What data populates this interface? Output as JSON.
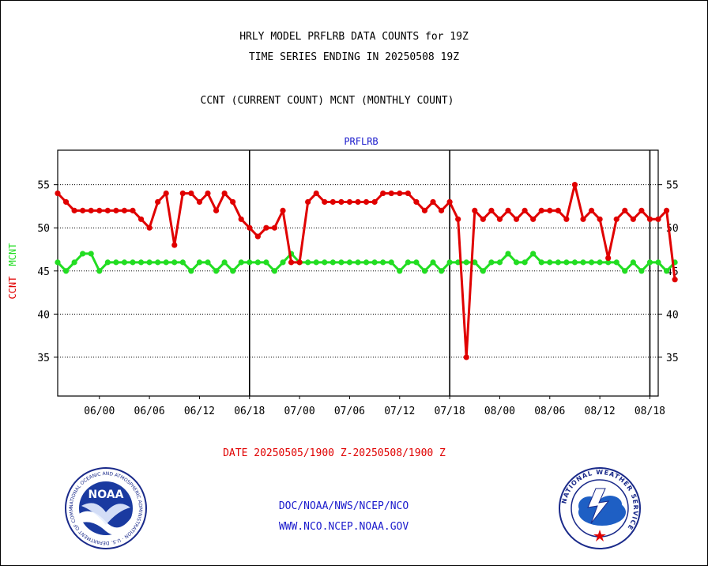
{
  "header": {
    "title_line1": "HRLY MODEL PRFLRB DATA COUNTS for 19Z",
    "title_line2": "TIME SERIES ENDING IN 20250508 19Z",
    "subtitle": "CCNT (CURRENT COUNT) MCNT (MONTHLY COUNT)"
  },
  "footer": {
    "org_path": "DOC/NOAA/NWS/NCEP/NCO",
    "website": "WWW.NCO.NCEP.NOAA.GOV"
  },
  "logos": {
    "noaa": {
      "center_text": "NOAA",
      "ring_text": "NATIONAL OCEANIC AND ATMOSPHERIC ADMINISTRATION · U.S. DEPARTMENT OF COMMERCE"
    },
    "nws": {
      "ring_text": "NATIONAL WEATHER SERVICE"
    }
  },
  "chart_data": {
    "type": "line",
    "title": "PRFLRB",
    "xlabel": "DATE 20250505/1900 Z-20250508/1900 Z",
    "ylabel_ccnt": "CCNT",
    "ylabel_mcnt": "MCNT",
    "ylim": [
      30.5,
      59
    ],
    "y_ticks": [
      35,
      40,
      45,
      50,
      55
    ],
    "x_ticks": [
      "06/00",
      "06/06",
      "06/12",
      "06/18",
      "07/00",
      "07/06",
      "07/12",
      "07/18",
      "08/00",
      "08/06",
      "08/12",
      "08/18"
    ],
    "x_tick_hours": [
      5,
      11,
      17,
      23,
      29,
      35,
      41,
      47,
      53,
      59,
      65,
      71
    ],
    "day_boundary_hours": [
      23,
      47,
      71
    ],
    "x_hours_range": [
      0,
      72
    ],
    "grid": "horizontal dotted",
    "colors": {
      "ccnt": "#e00000",
      "mcnt": "#22dd22",
      "title": "#1a1acc",
      "axes": "#000000"
    },
    "series": [
      {
        "name": "CCNT",
        "values": [
          54,
          53,
          52,
          52,
          52,
          52,
          52,
          52,
          52,
          52,
          51,
          50,
          53,
          54,
          48,
          54,
          54,
          53,
          54,
          52,
          54,
          53,
          51,
          50,
          49,
          50,
          50,
          52,
          46,
          46,
          53,
          54,
          53,
          53,
          53,
          53,
          53,
          53,
          53,
          54,
          54,
          54,
          54,
          53,
          52,
          53,
          52,
          53,
          51,
          35,
          52,
          51,
          52,
          51,
          52,
          51,
          52,
          51,
          52,
          52,
          52,
          51,
          55,
          51,
          52,
          51,
          46.5,
          51,
          52,
          51,
          52,
          51,
          51,
          52,
          44
        ]
      },
      {
        "name": "MCNT",
        "values": [
          46,
          45,
          46,
          47,
          47,
          45,
          46,
          46,
          46,
          46,
          46,
          46,
          46,
          46,
          46,
          46,
          45,
          46,
          46,
          45,
          46,
          45,
          46,
          46,
          46,
          46,
          45,
          46,
          47,
          46,
          46,
          46,
          46,
          46,
          46,
          46,
          46,
          46,
          46,
          46,
          46,
          45,
          46,
          46,
          45,
          46,
          45,
          46,
          46,
          46,
          46,
          45,
          46,
          46,
          47,
          46,
          46,
          47,
          46,
          46,
          46,
          46,
          46,
          46,
          46,
          46,
          46,
          46,
          45,
          46,
          45,
          46,
          46,
          45,
          46
        ]
      }
    ]
  }
}
